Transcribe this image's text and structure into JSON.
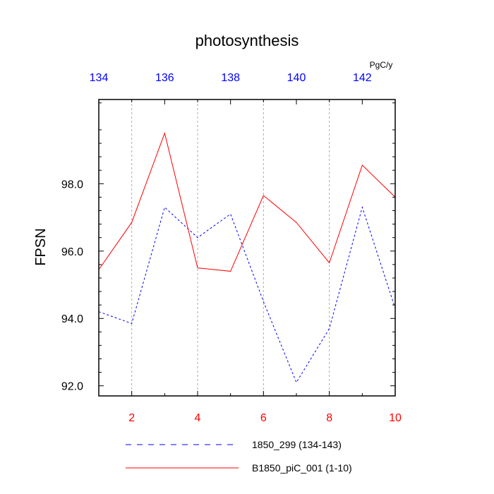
{
  "chart_data": {
    "type": "line",
    "title": "photosynthesis",
    "ylabel": "FPSN",
    "units": "PgC/y",
    "colors": {
      "series1": "#0000ff",
      "series2": "#ff0000",
      "top_ticks": "#0000ff",
      "bottom_ticks": "#ff0000"
    },
    "ylim": [
      91.7,
      100.5
    ],
    "yticks": [
      "92.0",
      "94.0",
      "96.0",
      "98.0"
    ],
    "yticks_values": [
      92.0,
      94.0,
      96.0,
      98.0
    ],
    "bottom_axis": {
      "range": [
        1,
        10
      ],
      "ticks": [
        2,
        4,
        6,
        8,
        10
      ],
      "labels": [
        "2",
        "4",
        "6",
        "8",
        "10"
      ]
    },
    "top_axis": {
      "range": [
        134,
        143
      ],
      "ticks": [
        134,
        136,
        138,
        140,
        142
      ],
      "labels": [
        "134",
        "136",
        "138",
        "140",
        "142"
      ]
    },
    "grid": "dotted vertical lines at bottom-axis major ticks",
    "series": [
      {
        "name": "1850_299 (134-143)",
        "axis": "top",
        "style": "dashed",
        "color": "#0000ff",
        "x": [
          134,
          135,
          136,
          137,
          138,
          139,
          140,
          141,
          142,
          143
        ],
        "values": [
          94.2,
          93.85,
          97.3,
          96.4,
          97.1,
          94.5,
          92.1,
          93.7,
          97.3,
          94.3
        ]
      },
      {
        "name": "B1850_piC_001 (1-10)",
        "axis": "bottom",
        "style": "solid",
        "color": "#ff0000",
        "x": [
          1,
          2,
          3,
          4,
          5,
          6,
          7,
          8,
          9,
          10
        ],
        "values": [
          95.45,
          96.85,
          99.5,
          95.5,
          95.4,
          97.65,
          96.85,
          95.65,
          98.55,
          97.6
        ]
      }
    ]
  }
}
